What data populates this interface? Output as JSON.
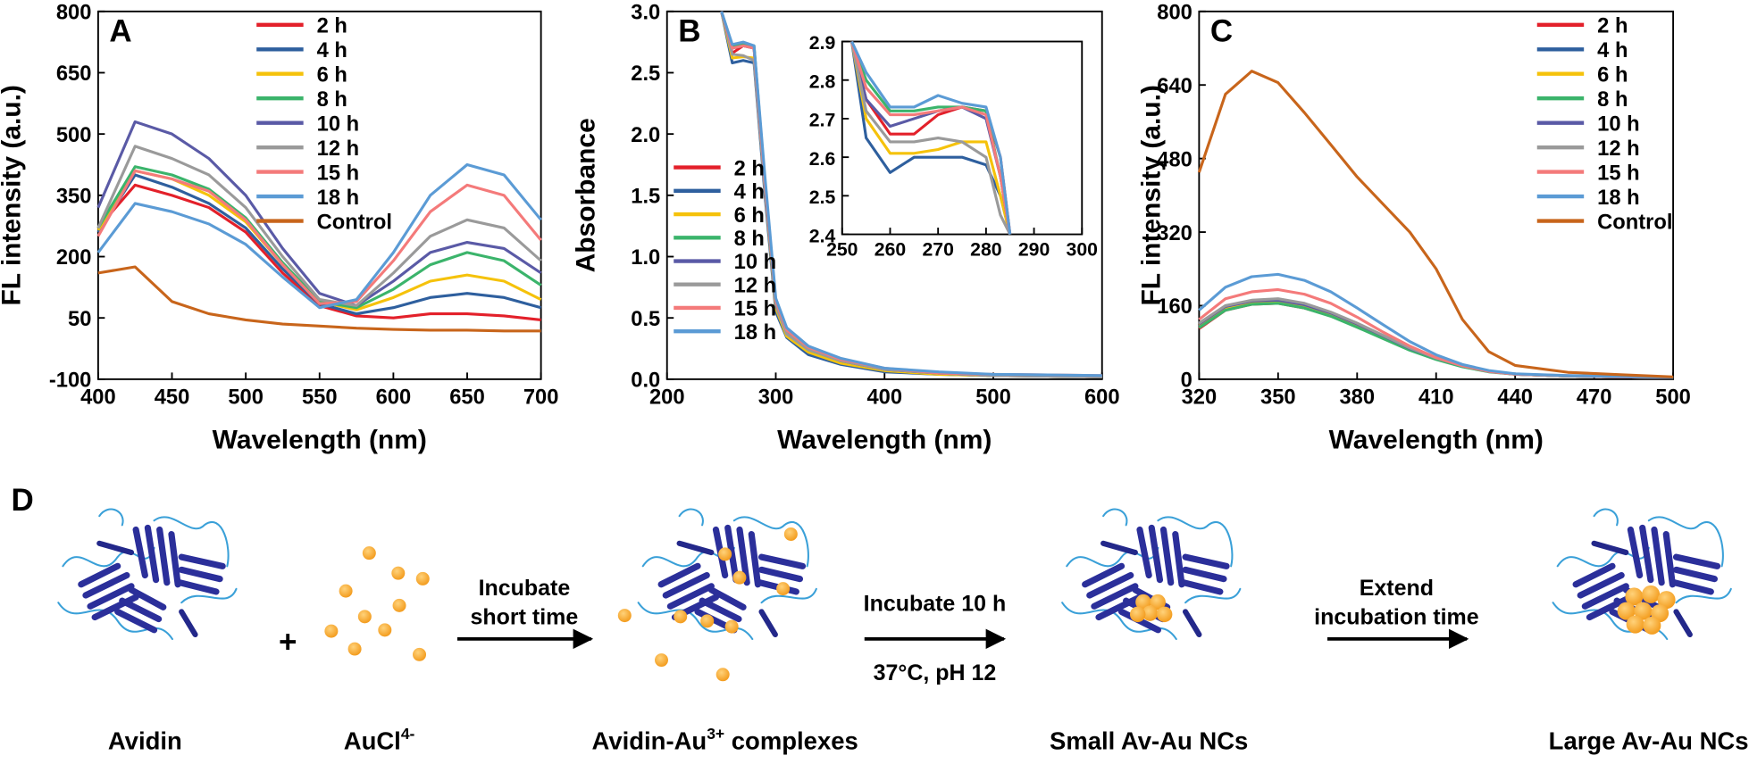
{
  "chart_data": [
    {
      "type": "line",
      "panel": "A",
      "ylabel": "FL intensity (a.u.)",
      "xlabel": "Wavelength (nm)",
      "xlim": [
        400,
        700
      ],
      "ylim": [
        -100,
        800
      ],
      "xticks": [
        400,
        450,
        500,
        550,
        600,
        650,
        700
      ],
      "yticks": [
        -100,
        50,
        200,
        350,
        500,
        650,
        800
      ],
      "x": [
        400,
        425,
        450,
        475,
        500,
        525,
        550,
        575,
        600,
        625,
        650,
        675,
        700
      ],
      "series": [
        {
          "name": "2 h",
          "color": "#e3202a",
          "values": [
            270,
            375,
            350,
            320,
            260,
            160,
            80,
            55,
            50,
            60,
            60,
            55,
            45
          ]
        },
        {
          "name": "4 h",
          "color": "#2e5f9e",
          "values": [
            260,
            400,
            370,
            330,
            270,
            170,
            85,
            60,
            75,
            100,
            110,
            100,
            75
          ]
        },
        {
          "name": "6 h",
          "color": "#f5c20b",
          "values": [
            265,
            410,
            390,
            350,
            285,
            180,
            90,
            70,
            100,
            140,
            155,
            140,
            95
          ]
        },
        {
          "name": "8 h",
          "color": "#3bb46b",
          "values": [
            270,
            420,
            400,
            365,
            295,
            185,
            90,
            75,
            120,
            180,
            210,
            190,
            130
          ]
        },
        {
          "name": "10 h",
          "color": "#5a5aa6",
          "values": [
            320,
            530,
            500,
            440,
            350,
            220,
            110,
            80,
            140,
            210,
            235,
            220,
            160
          ]
        },
        {
          "name": "12 h",
          "color": "#9a9a9a",
          "values": [
            270,
            470,
            440,
            400,
            320,
            200,
            95,
            80,
            160,
            250,
            290,
            270,
            190
          ]
        },
        {
          "name": "15 h",
          "color": "#f47a7a",
          "values": [
            250,
            410,
            390,
            360,
            290,
            180,
            85,
            90,
            190,
            310,
            375,
            350,
            240
          ]
        },
        {
          "name": "18 h",
          "color": "#5b9bd5",
          "values": [
            210,
            330,
            310,
            280,
            230,
            150,
            75,
            95,
            210,
            350,
            425,
            400,
            290
          ]
        },
        {
          "name": "Control",
          "color": "#c8651b",
          "values": [
            160,
            175,
            90,
            60,
            45,
            35,
            30,
            25,
            22,
            20,
            20,
            18,
            18
          ]
        }
      ]
    },
    {
      "type": "line",
      "panel": "B",
      "ylabel": "Absorbance",
      "xlabel": "Wavelength (nm)",
      "xlim": [
        200,
        600
      ],
      "ylim": [
        0,
        3
      ],
      "xticks": [
        200,
        300,
        400,
        500,
        600
      ],
      "yticks": [
        {
          "value": 0,
          "label": "0.0"
        },
        0.5,
        {
          "value": 1,
          "label": "1.0"
        },
        1.5,
        {
          "value": 2,
          "label": "2.0"
        },
        2.5,
        {
          "value": 3,
          "label": "3.0"
        }
      ],
      "x": [
        250,
        260,
        270,
        280,
        290,
        300,
        310,
        330,
        360,
        400,
        450,
        500,
        600
      ],
      "series": [
        {
          "name": "2 h",
          "color": "#e3202a",
          "values": [
            3.0,
            2.66,
            2.72,
            2.7,
            1.6,
            0.62,
            0.38,
            0.24,
            0.15,
            0.08,
            0.05,
            0.03,
            0.02
          ]
        },
        {
          "name": "4 h",
          "color": "#2e5f9e",
          "values": [
            3.0,
            2.58,
            2.6,
            2.58,
            1.5,
            0.55,
            0.34,
            0.2,
            0.12,
            0.06,
            0.04,
            0.03,
            0.02
          ]
        },
        {
          "name": "6 h",
          "color": "#f5c20b",
          "values": [
            3.0,
            2.62,
            2.63,
            2.62,
            1.55,
            0.58,
            0.35,
            0.22,
            0.13,
            0.07,
            0.04,
            0.03,
            0.02
          ]
        },
        {
          "name": "8 h",
          "color": "#3bb46b",
          "values": [
            3.0,
            2.72,
            2.73,
            2.72,
            1.6,
            0.62,
            0.38,
            0.24,
            0.15,
            0.08,
            0.05,
            0.03,
            0.02
          ]
        },
        {
          "name": "10 h",
          "color": "#5a5aa6",
          "values": [
            3.0,
            2.7,
            2.72,
            2.7,
            1.6,
            0.63,
            0.39,
            0.25,
            0.15,
            0.08,
            0.05,
            0.03,
            0.02
          ]
        },
        {
          "name": "12 h",
          "color": "#9a9a9a",
          "values": [
            3.0,
            2.65,
            2.64,
            2.6,
            1.55,
            0.6,
            0.37,
            0.24,
            0.15,
            0.08,
            0.05,
            0.03,
            0.02
          ]
        },
        {
          "name": "15 h",
          "color": "#f47a7a",
          "values": [
            3.0,
            2.7,
            2.72,
            2.7,
            1.6,
            0.64,
            0.4,
            0.26,
            0.16,
            0.09,
            0.05,
            0.04,
            0.03
          ]
        },
        {
          "name": "18 h",
          "color": "#5b9bd5",
          "values": [
            3.0,
            2.73,
            2.75,
            2.72,
            1.65,
            0.66,
            0.42,
            0.27,
            0.17,
            0.09,
            0.06,
            0.04,
            0.03
          ]
        }
      ],
      "inset": {
        "xlim": [
          250,
          300
        ],
        "ylim": [
          2.4,
          2.9
        ],
        "xticks": [
          250,
          260,
          270,
          280,
          290,
          300
        ],
        "yticks": [
          2.4,
          2.5,
          2.6,
          2.7,
          2.8,
          2.9
        ],
        "x": [
          252,
          255,
          260,
          265,
          270,
          275,
          280,
          283,
          285
        ],
        "series": [
          {
            "values": [
              2.9,
              2.75,
              2.66,
              2.66,
              2.71,
              2.73,
              2.72,
              2.6,
              2.4
            ]
          },
          {
            "values": [
              2.9,
              2.65,
              2.56,
              2.6,
              2.6,
              2.6,
              2.58,
              2.5,
              2.4
            ]
          },
          {
            "values": [
              2.9,
              2.7,
              2.61,
              2.61,
              2.62,
              2.64,
              2.64,
              2.5,
              2.4
            ]
          },
          {
            "values": [
              2.9,
              2.8,
              2.72,
              2.72,
              2.73,
              2.73,
              2.72,
              2.55,
              2.4
            ]
          },
          {
            "values": [
              2.9,
              2.75,
              2.68,
              2.7,
              2.72,
              2.73,
              2.7,
              2.55,
              2.4
            ]
          },
          {
            "values": [
              2.9,
              2.72,
              2.64,
              2.64,
              2.65,
              2.64,
              2.6,
              2.45,
              2.4
            ]
          },
          {
            "values": [
              2.9,
              2.78,
              2.71,
              2.71,
              2.72,
              2.73,
              2.71,
              2.55,
              2.4
            ]
          },
          {
            "values": [
              2.9,
              2.82,
              2.73,
              2.73,
              2.76,
              2.74,
              2.73,
              2.6,
              2.4
            ]
          }
        ]
      }
    },
    {
      "type": "line",
      "panel": "C",
      "ylabel": "FL intensity (a.u.)",
      "xlabel": "Wavelength (nm)",
      "xlim": [
        320,
        500
      ],
      "ylim": [
        0,
        800
      ],
      "xticks": [
        320,
        350,
        380,
        410,
        440,
        470,
        500
      ],
      "yticks": [
        0,
        160,
        320,
        480,
        640,
        800
      ],
      "x": [
        320,
        330,
        340,
        350,
        360,
        370,
        380,
        390,
        400,
        410,
        420,
        430,
        440,
        460,
        480,
        500
      ],
      "series": [
        {
          "name": "2 h",
          "color": "#e3202a",
          "values": [
            110,
            150,
            163,
            165,
            155,
            138,
            115,
            90,
            65,
            45,
            28,
            17,
            11,
            7,
            5,
            4
          ]
        },
        {
          "name": "4 h",
          "color": "#2e5f9e",
          "values": [
            115,
            152,
            165,
            167,
            157,
            140,
            117,
            92,
            66,
            45,
            28,
            17,
            11,
            7,
            5,
            4
          ]
        },
        {
          "name": "6 h",
          "color": "#f5c20b",
          "values": [
            118,
            155,
            168,
            170,
            160,
            142,
            118,
            92,
            66,
            45,
            28,
            17,
            11,
            7,
            5,
            4
          ]
        },
        {
          "name": "8 h",
          "color": "#3bb46b",
          "values": [
            112,
            150,
            163,
            165,
            155,
            137,
            113,
            88,
            63,
            43,
            27,
            16,
            11,
            7,
            5,
            4
          ]
        },
        {
          "name": "10 h",
          "color": "#5a5aa6",
          "values": [
            120,
            158,
            170,
            172,
            162,
            144,
            120,
            94,
            67,
            46,
            29,
            17,
            11,
            7,
            5,
            4
          ]
        },
        {
          "name": "12 h",
          "color": "#9a9a9a",
          "values": [
            122,
            160,
            172,
            175,
            165,
            146,
            122,
            95,
            68,
            46,
            29,
            17,
            11,
            7,
            5,
            4
          ]
        },
        {
          "name": "15 h",
          "color": "#f47a7a",
          "values": [
            130,
            175,
            190,
            195,
            185,
            165,
            135,
            102,
            72,
            47,
            29,
            17,
            11,
            8,
            5,
            4
          ]
        },
        {
          "name": "18 h",
          "color": "#5b9bd5",
          "values": [
            150,
            200,
            223,
            228,
            215,
            190,
            155,
            118,
            82,
            53,
            32,
            19,
            12,
            8,
            6,
            4
          ]
        },
        {
          "name": "Control",
          "color": "#c8651b",
          "values": [
            450,
            620,
            670,
            645,
            580,
            510,
            440,
            380,
            320,
            240,
            130,
            60,
            30,
            15,
            10,
            5
          ]
        }
      ]
    }
  ],
  "diagram": {
    "panel": "D",
    "plus": "+",
    "step1": [
      "Incubate",
      "short time"
    ],
    "step2": {
      "above": "Incubate 10 h",
      "below": "37°C, pH 12"
    },
    "step3": [
      "Extend",
      "incubation time"
    ],
    "labels": {
      "avidin": "Avidin",
      "au": {
        "text": "AuCl",
        "sup": "4-"
      },
      "complex": {
        "text": "Avidin-Au",
        "sup": "3+",
        "after": " complexes"
      },
      "small": "Small Av-Au NCs",
      "large": "Large Av-Au NCs"
    }
  }
}
